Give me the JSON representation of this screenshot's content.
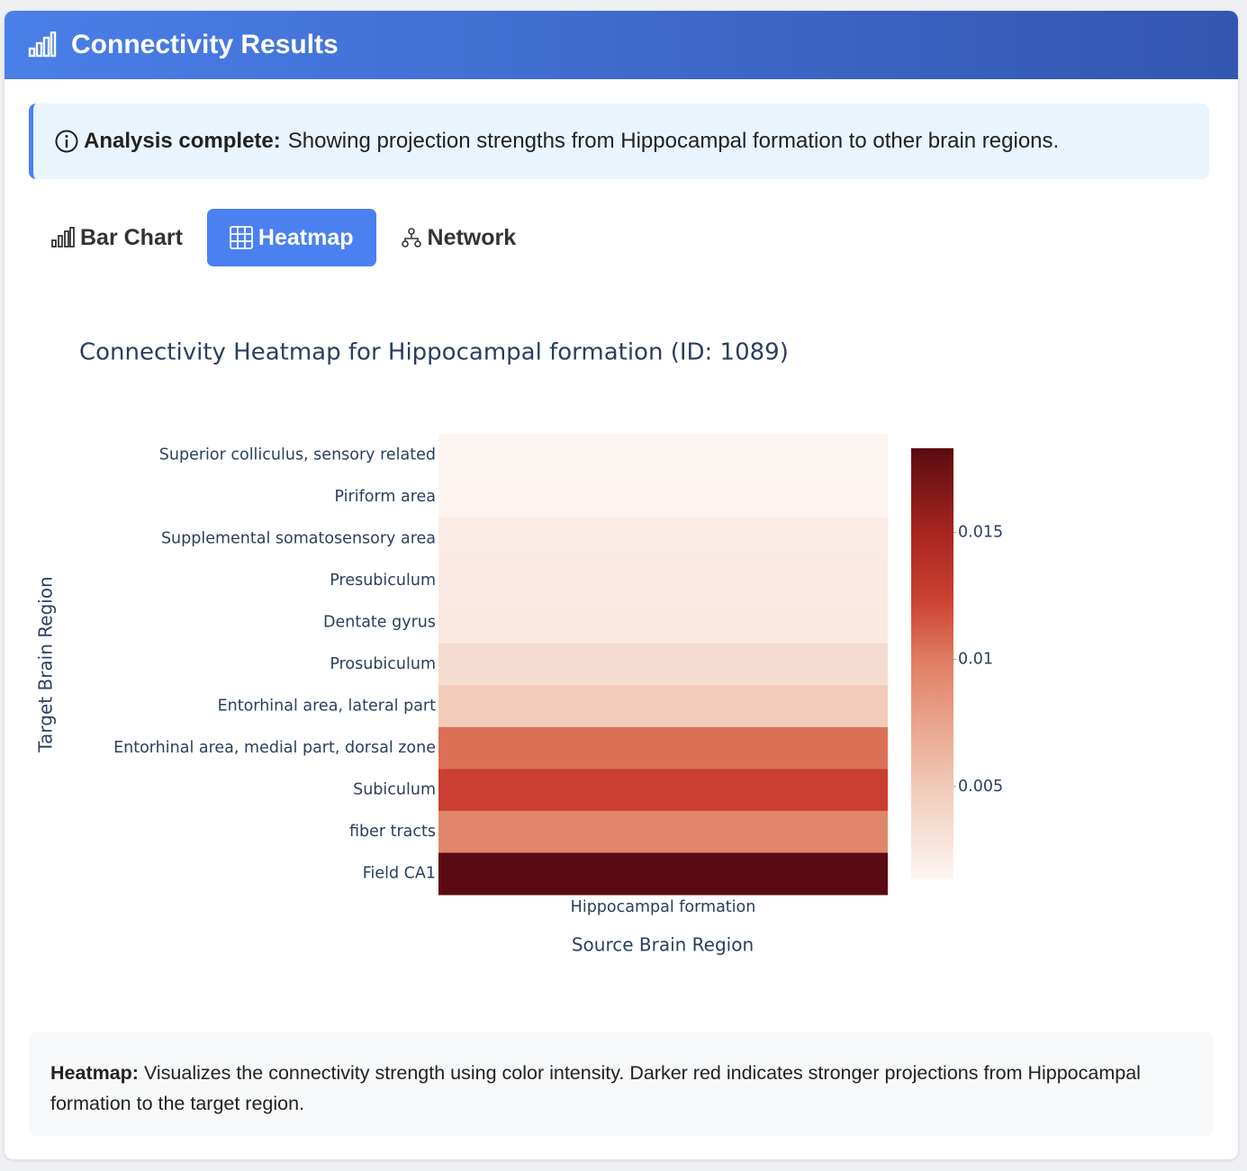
{
  "header": {
    "title": "Connectivity Results"
  },
  "alert": {
    "bold": "Analysis complete:",
    "text": "Showing projection strengths from Hippocampal formation to other brain regions."
  },
  "tabs": [
    {
      "label": "Bar Chart"
    },
    {
      "label": "Heatmap",
      "active": true
    },
    {
      "label": "Network"
    }
  ],
  "chart_data": {
    "type": "heatmap",
    "title": "Connectivity Heatmap for Hippocampal formation (ID: 1089)",
    "x_label": "Source Brain Region",
    "y_label": "Target Brain Region",
    "x": [
      "Hippocampal formation"
    ],
    "categories": [
      "Superior colliculus, sensory related",
      "Piriform area",
      "Supplemental somatosensory area",
      "Presubiculum",
      "Dentate gyrus",
      "Prosubiculum",
      "Entorhinal area, lateral part",
      "Entorhinal area, medial part, dorsal zone",
      "Subiculum",
      "fiber tracts",
      "Field CA1"
    ],
    "values": [
      0.00135,
      0.0014,
      0.0022,
      0.0023,
      0.0024,
      0.0035,
      0.0048,
      0.0105,
      0.0125,
      0.0095,
      0.0183
    ],
    "zlim": [
      0.00135,
      0.0183
    ],
    "zticks": [
      0.015,
      0.01,
      0.005
    ],
    "colorscale": [
      [
        0,
        "#fdf5f2"
      ],
      [
        0.2,
        "#f1cdbc"
      ],
      [
        0.5,
        "#e08164"
      ],
      [
        0.65,
        "#cc4033"
      ],
      [
        0.8,
        "#a8261f"
      ],
      [
        1,
        "#5a0b12"
      ]
    ]
  },
  "note": {
    "bold": "Heatmap:",
    "text": "Visualizes the connectivity strength using color intensity. Darker red indicates stronger projections from Hippocampal formation to the target region."
  }
}
